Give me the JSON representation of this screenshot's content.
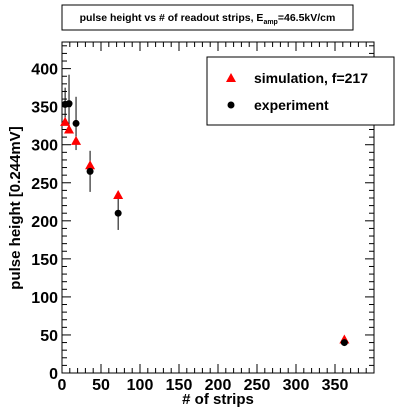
{
  "chart_data": {
    "type": "scatter",
    "title": {
      "main": "pulse height vs # of readout strips, E",
      "sub": "amp",
      "tail": "=46.5kV/cm"
    },
    "xlabel": "# of strips",
    "ylabel": "pulse height [0.244mV]",
    "xlim": [
      0,
      400
    ],
    "ylim": [
      0,
      435
    ],
    "x_ticks": [
      0,
      50,
      100,
      150,
      200,
      250,
      300,
      350
    ],
    "y_ticks": [
      0,
      50,
      100,
      150,
      200,
      250,
      300,
      350,
      400
    ],
    "grid": false,
    "legend_position": "top-right",
    "series": [
      {
        "name": "simulation, f=217",
        "marker": "triangle",
        "color": "#ff0000",
        "points": [
          {
            "x": 4,
            "y": 330
          },
          {
            "x": 9,
            "y": 320
          },
          {
            "x": 18,
            "y": 305
          },
          {
            "x": 36,
            "y": 273
          },
          {
            "x": 72,
            "y": 234
          },
          {
            "x": 362,
            "y": 44
          }
        ]
      },
      {
        "name": "experiment",
        "marker": "circle",
        "color": "#000000",
        "points": [
          {
            "x": 4,
            "y": 353,
            "err": 22
          },
          {
            "x": 9,
            "y": 354,
            "err": 38
          },
          {
            "x": 18,
            "y": 328,
            "err": 35
          },
          {
            "x": 36,
            "y": 265,
            "err": 27
          },
          {
            "x": 72,
            "y": 210,
            "err": 22
          },
          {
            "x": 362,
            "y": 40,
            "err": 2
          }
        ]
      }
    ]
  }
}
